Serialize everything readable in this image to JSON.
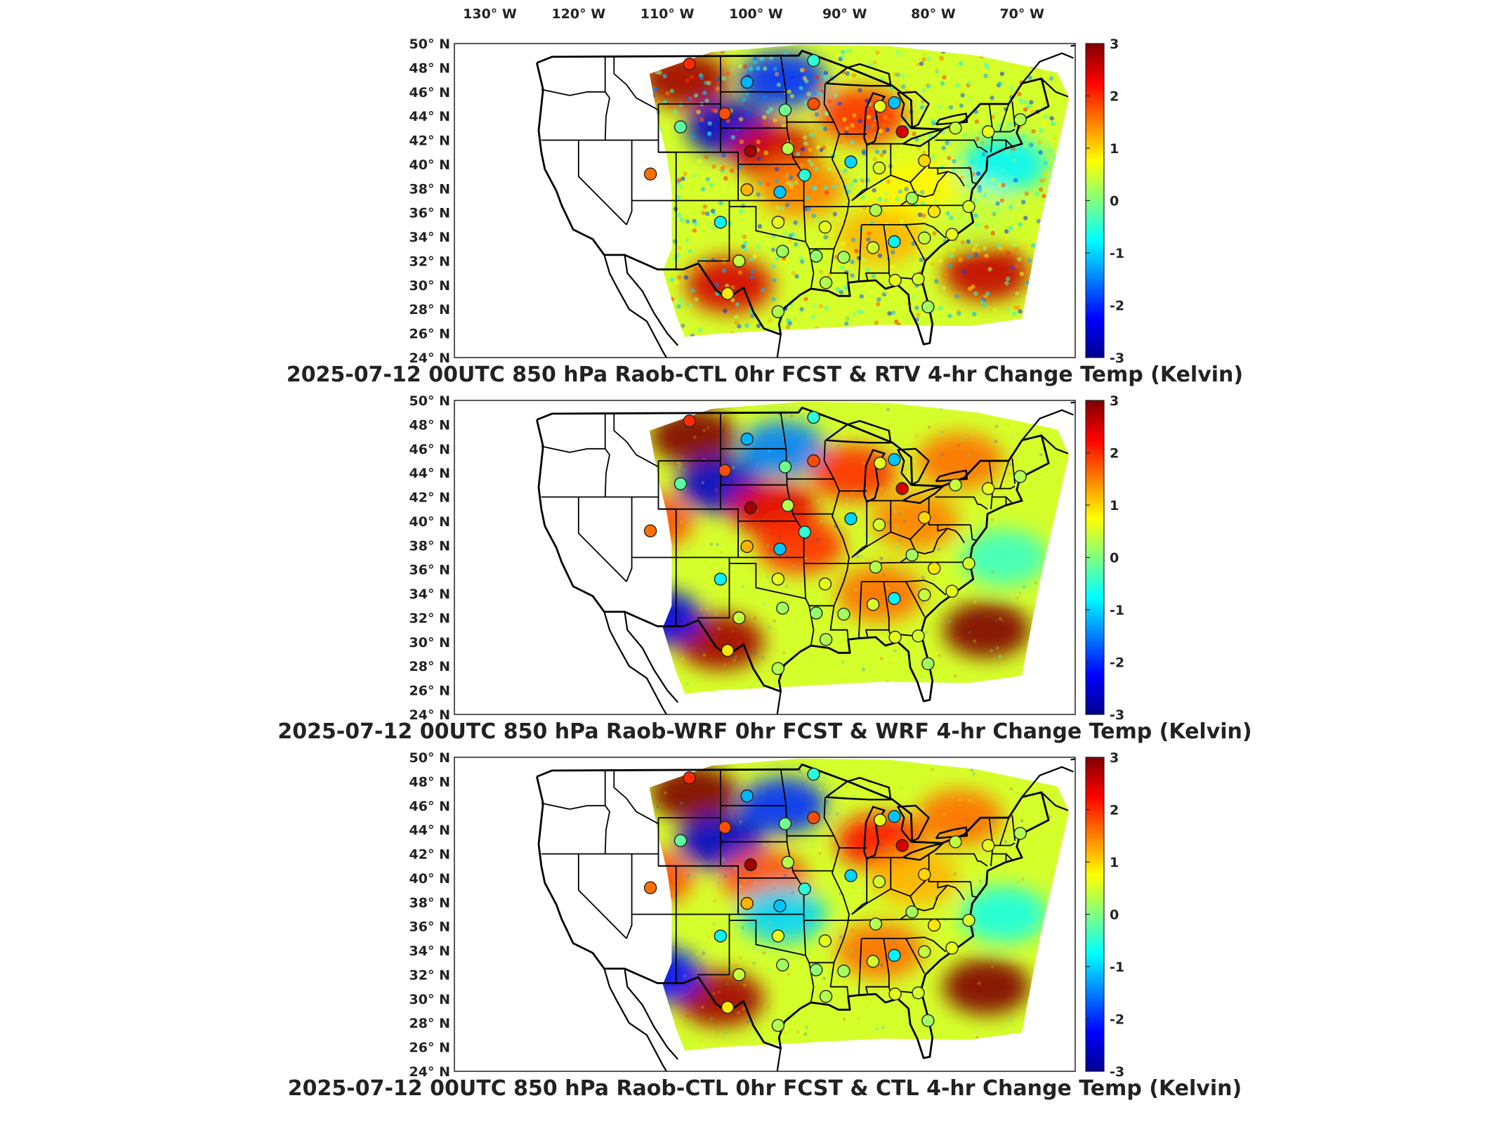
{
  "figure": {
    "lon_ticks": [
      "130° W",
      "120° W",
      "110° W",
      "100° W",
      "90° W",
      "80° W",
      "70° W"
    ],
    "lat_ticks": [
      "50° N",
      "48° N",
      "46° N",
      "44° N",
      "42° N",
      "40° N",
      "38° N",
      "36° N",
      "34° N",
      "32° N",
      "30° N",
      "28° N",
      "26° N",
      "24° N"
    ],
    "colorbar_ticks": [
      "3",
      "2",
      "1",
      "0",
      "-1",
      "-2",
      "-3"
    ],
    "colormap": [
      "#00008f",
      "#0000ff",
      "#0080ff",
      "#00ffff",
      "#80ff80",
      "#ffff00",
      "#ff8000",
      "#ff0000",
      "#800000"
    ]
  },
  "chart_data": [
    {
      "type": "heatmap",
      "title": "2025-07-12 00UTC 850 hPa Raob-CTL 0hr FCST & RTV 4-hr Change Temp (Kelvin)",
      "xlim": [
        -134,
        -64
      ],
      "ylim": [
        24,
        50
      ],
      "clim": [
        -3,
        3
      ],
      "field_pattern": "speckled",
      "regions": [
        {
          "lon": -108,
          "lat": 47,
          "value": 2.8
        },
        {
          "lon": -103,
          "lat": 43,
          "value": -2.6
        },
        {
          "lon": -97,
          "lat": 47,
          "value": -2.0
        },
        {
          "lon": -98,
          "lat": 41,
          "value": 2.5
        },
        {
          "lon": -88,
          "lat": 44,
          "value": 2.0
        },
        {
          "lon": -95,
          "lat": 38,
          "value": 1.5
        },
        {
          "lon": -103,
          "lat": 30,
          "value": 2.5
        },
        {
          "lon": -86,
          "lat": 34,
          "value": 1.2
        },
        {
          "lon": -72,
          "lat": 40,
          "value": -0.8
        },
        {
          "lon": -74,
          "lat": 31,
          "value": 2.6
        },
        {
          "lon": -76,
          "lat": 36,
          "value": 0.4
        },
        {
          "lon": -82,
          "lat": 38,
          "value": 0.8
        }
      ],
      "stations": [
        {
          "lon": -107.5,
          "lat": 48.3,
          "value": 2.0
        },
        {
          "lon": -101.0,
          "lat": 46.8,
          "value": -1.2
        },
        {
          "lon": -93.5,
          "lat": 48.6,
          "value": -0.5
        },
        {
          "lon": -108.5,
          "lat": 43.1,
          "value": -0.2
        },
        {
          "lon": -103.5,
          "lat": 44.2,
          "value": 1.8
        },
        {
          "lon": -96.7,
          "lat": 44.5,
          "value": -0.1
        },
        {
          "lon": -93.5,
          "lat": 45.0,
          "value": 1.8
        },
        {
          "lon": -86.0,
          "lat": 44.8,
          "value": 0.6
        },
        {
          "lon": -84.4,
          "lat": 45.1,
          "value": -1.1
        },
        {
          "lon": -83.5,
          "lat": 42.7,
          "value": 2.5
        },
        {
          "lon": -77.5,
          "lat": 43.0,
          "value": 0.4
        },
        {
          "lon": -73.8,
          "lat": 42.7,
          "value": 0.6
        },
        {
          "lon": -70.2,
          "lat": 43.7,
          "value": 0.3
        },
        {
          "lon": -100.6,
          "lat": 41.1,
          "value": 2.8
        },
        {
          "lon": -96.4,
          "lat": 41.3,
          "value": 0.3
        },
        {
          "lon": -89.3,
          "lat": 40.2,
          "value": -1.0
        },
        {
          "lon": -86.1,
          "lat": 39.7,
          "value": 0.5
        },
        {
          "lon": -81.0,
          "lat": 40.3,
          "value": 1.0
        },
        {
          "lon": -111.9,
          "lat": 39.2,
          "value": 1.6
        },
        {
          "lon": -101.0,
          "lat": 37.9,
          "value": 1.2
        },
        {
          "lon": -97.3,
          "lat": 37.7,
          "value": -1.1
        },
        {
          "lon": -94.5,
          "lat": 39.1,
          "value": -0.5
        },
        {
          "lon": -86.5,
          "lat": 36.2,
          "value": 0.3
        },
        {
          "lon": -82.4,
          "lat": 37.2,
          "value": 0.2
        },
        {
          "lon": -79.9,
          "lat": 36.1,
          "value": 0.9
        },
        {
          "lon": -76.0,
          "lat": 36.5,
          "value": 0.5
        },
        {
          "lon": -104.0,
          "lat": 35.2,
          "value": -0.8
        },
        {
          "lon": -97.5,
          "lat": 35.2,
          "value": 0.6
        },
        {
          "lon": -92.2,
          "lat": 34.8,
          "value": 0.6
        },
        {
          "lon": -90.1,
          "lat": 32.3,
          "value": 0.2
        },
        {
          "lon": -86.8,
          "lat": 33.1,
          "value": 0.5
        },
        {
          "lon": -84.4,
          "lat": 33.6,
          "value": -0.8
        },
        {
          "lon": -81.0,
          "lat": 33.9,
          "value": 0.4
        },
        {
          "lon": -77.9,
          "lat": 34.2,
          "value": 0.6
        },
        {
          "lon": -101.9,
          "lat": 32.0,
          "value": 0.4
        },
        {
          "lon": -97.0,
          "lat": 32.8,
          "value": 0.2
        },
        {
          "lon": -93.2,
          "lat": 32.4,
          "value": 0.1
        },
        {
          "lon": -84.3,
          "lat": 30.4,
          "value": 0.6
        },
        {
          "lon": -81.7,
          "lat": 30.5,
          "value": 0.5
        },
        {
          "lon": -97.5,
          "lat": 27.8,
          "value": 0.3
        },
        {
          "lon": -80.6,
          "lat": 28.2,
          "value": 0.2
        },
        {
          "lon": -92.1,
          "lat": 30.2,
          "value": 0.3
        },
        {
          "lon": -103.2,
          "lat": 29.3,
          "value": 0.9
        }
      ]
    },
    {
      "type": "heatmap",
      "title": "2025-07-12 00UTC 850 hPa Raob-WRF 0hr FCST & WRF 4-hr Change Temp (Kelvin)",
      "xlim": [
        -134,
        -64
      ],
      "ylim": [
        24,
        50
      ],
      "clim": [
        -3,
        3
      ],
      "field_pattern": "smooth",
      "regions": [
        {
          "lon": -107,
          "lat": 47,
          "value": 3.0
        },
        {
          "lon": -104,
          "lat": 43,
          "value": -2.6
        },
        {
          "lon": -97,
          "lat": 46,
          "value": -1.5
        },
        {
          "lon": -98,
          "lat": 41,
          "value": 2.4
        },
        {
          "lon": -89,
          "lat": 44,
          "value": 2.0
        },
        {
          "lon": -95,
          "lat": 38,
          "value": 2.0
        },
        {
          "lon": -104,
          "lat": 30,
          "value": 2.8
        },
        {
          "lon": -86,
          "lat": 34,
          "value": 1.6
        },
        {
          "lon": -82,
          "lat": 40,
          "value": 1.5
        },
        {
          "lon": -72,
          "lat": 37,
          "value": -0.4
        },
        {
          "lon": -74,
          "lat": 31,
          "value": 3.0
        },
        {
          "lon": -77,
          "lat": 45,
          "value": 1.6
        },
        {
          "lon": -112,
          "lat": 40,
          "value": 1.8
        },
        {
          "lon": -111,
          "lat": 32,
          "value": -2.4
        }
      ],
      "stations": [
        {
          "lon": -107.5,
          "lat": 48.3,
          "value": 2.0
        },
        {
          "lon": -101.0,
          "lat": 46.8,
          "value": -1.2
        },
        {
          "lon": -93.5,
          "lat": 48.6,
          "value": -0.5
        },
        {
          "lon": -108.5,
          "lat": 43.1,
          "value": -0.2
        },
        {
          "lon": -103.5,
          "lat": 44.2,
          "value": 1.8
        },
        {
          "lon": -96.7,
          "lat": 44.5,
          "value": -0.1
        },
        {
          "lon": -93.5,
          "lat": 45.0,
          "value": 1.8
        },
        {
          "lon": -86.0,
          "lat": 44.8,
          "value": 0.6
        },
        {
          "lon": -84.4,
          "lat": 45.1,
          "value": -1.1
        },
        {
          "lon": -83.5,
          "lat": 42.7,
          "value": 2.5
        },
        {
          "lon": -77.5,
          "lat": 43.0,
          "value": 0.4
        },
        {
          "lon": -73.8,
          "lat": 42.7,
          "value": 0.6
        },
        {
          "lon": -70.2,
          "lat": 43.7,
          "value": 0.3
        },
        {
          "lon": -100.6,
          "lat": 41.1,
          "value": 2.8
        },
        {
          "lon": -96.4,
          "lat": 41.3,
          "value": 0.3
        },
        {
          "lon": -89.3,
          "lat": 40.2,
          "value": -1.0
        },
        {
          "lon": -86.1,
          "lat": 39.7,
          "value": 0.5
        },
        {
          "lon": -81.0,
          "lat": 40.3,
          "value": 1.0
        },
        {
          "lon": -111.9,
          "lat": 39.2,
          "value": 1.6
        },
        {
          "lon": -101.0,
          "lat": 37.9,
          "value": 1.2
        },
        {
          "lon": -97.3,
          "lat": 37.7,
          "value": -1.1
        },
        {
          "lon": -94.5,
          "lat": 39.1,
          "value": -0.5
        },
        {
          "lon": -86.5,
          "lat": 36.2,
          "value": 0.3
        },
        {
          "lon": -82.4,
          "lat": 37.2,
          "value": 0.2
        },
        {
          "lon": -79.9,
          "lat": 36.1,
          "value": 0.9
        },
        {
          "lon": -76.0,
          "lat": 36.5,
          "value": 0.5
        },
        {
          "lon": -104.0,
          "lat": 35.2,
          "value": -0.8
        },
        {
          "lon": -97.5,
          "lat": 35.2,
          "value": 0.6
        },
        {
          "lon": -92.2,
          "lat": 34.8,
          "value": 0.6
        },
        {
          "lon": -90.1,
          "lat": 32.3,
          "value": 0.2
        },
        {
          "lon": -86.8,
          "lat": 33.1,
          "value": 0.5
        },
        {
          "lon": -84.4,
          "lat": 33.6,
          "value": -0.8
        },
        {
          "lon": -81.0,
          "lat": 33.9,
          "value": 0.4
        },
        {
          "lon": -77.9,
          "lat": 34.2,
          "value": 0.6
        },
        {
          "lon": -101.9,
          "lat": 32.0,
          "value": 0.4
        },
        {
          "lon": -97.0,
          "lat": 32.8,
          "value": 0.2
        },
        {
          "lon": -93.2,
          "lat": 32.4,
          "value": 0.1
        },
        {
          "lon": -84.3,
          "lat": 30.4,
          "value": 0.6
        },
        {
          "lon": -81.7,
          "lat": 30.5,
          "value": 0.5
        },
        {
          "lon": -97.5,
          "lat": 27.8,
          "value": 0.3
        },
        {
          "lon": -80.6,
          "lat": 28.2,
          "value": 0.2
        },
        {
          "lon": -92.1,
          "lat": 30.2,
          "value": 0.3
        },
        {
          "lon": -103.2,
          "lat": 29.3,
          "value": 0.9
        }
      ]
    },
    {
      "type": "heatmap",
      "title": "2025-07-12 00UTC 850 hPa Raob-CTL 0hr FCST & CTL 4-hr Change Temp (Kelvin)",
      "xlim": [
        -134,
        -64
      ],
      "ylim": [
        24,
        50
      ],
      "clim": [
        -3,
        3
      ],
      "field_pattern": "smooth",
      "regions": [
        {
          "lon": -107,
          "lat": 47,
          "value": 3.0
        },
        {
          "lon": -104,
          "lat": 43,
          "value": -2.6
        },
        {
          "lon": -97,
          "lat": 46,
          "value": -2.0
        },
        {
          "lon": -99,
          "lat": 40,
          "value": 1.8
        },
        {
          "lon": -86,
          "lat": 43,
          "value": 2.2
        },
        {
          "lon": -97,
          "lat": 37,
          "value": -1.0
        },
        {
          "lon": -104,
          "lat": 30,
          "value": 2.8
        },
        {
          "lon": -86,
          "lat": 34,
          "value": 1.6
        },
        {
          "lon": -82,
          "lat": 40,
          "value": 1.2
        },
        {
          "lon": -72,
          "lat": 37,
          "value": -0.6
        },
        {
          "lon": -74,
          "lat": 31,
          "value": 3.0
        },
        {
          "lon": -77,
          "lat": 45,
          "value": 1.6
        },
        {
          "lon": -112,
          "lat": 40,
          "value": 1.8
        },
        {
          "lon": -111,
          "lat": 32,
          "value": -2.2
        }
      ],
      "stations": [
        {
          "lon": -107.5,
          "lat": 48.3,
          "value": 2.0
        },
        {
          "lon": -101.0,
          "lat": 46.8,
          "value": -1.2
        },
        {
          "lon": -93.5,
          "lat": 48.6,
          "value": -0.5
        },
        {
          "lon": -108.5,
          "lat": 43.1,
          "value": -0.2
        },
        {
          "lon": -103.5,
          "lat": 44.2,
          "value": 1.8
        },
        {
          "lon": -96.7,
          "lat": 44.5,
          "value": -0.1
        },
        {
          "lon": -93.5,
          "lat": 45.0,
          "value": 1.8
        },
        {
          "lon": -86.0,
          "lat": 44.8,
          "value": 0.6
        },
        {
          "lon": -84.4,
          "lat": 45.1,
          "value": -1.1
        },
        {
          "lon": -83.5,
          "lat": 42.7,
          "value": 2.5
        },
        {
          "lon": -77.5,
          "lat": 43.0,
          "value": 0.4
        },
        {
          "lon": -73.8,
          "lat": 42.7,
          "value": 0.6
        },
        {
          "lon": -70.2,
          "lat": 43.7,
          "value": 0.3
        },
        {
          "lon": -100.6,
          "lat": 41.1,
          "value": 2.8
        },
        {
          "lon": -96.4,
          "lat": 41.3,
          "value": 0.3
        },
        {
          "lon": -89.3,
          "lat": 40.2,
          "value": -1.0
        },
        {
          "lon": -86.1,
          "lat": 39.7,
          "value": 0.5
        },
        {
          "lon": -81.0,
          "lat": 40.3,
          "value": 1.0
        },
        {
          "lon": -111.9,
          "lat": 39.2,
          "value": 1.6
        },
        {
          "lon": -101.0,
          "lat": 37.9,
          "value": 1.2
        },
        {
          "lon": -97.3,
          "lat": 37.7,
          "value": -1.1
        },
        {
          "lon": -94.5,
          "lat": 39.1,
          "value": -0.5
        },
        {
          "lon": -86.5,
          "lat": 36.2,
          "value": 0.3
        },
        {
          "lon": -82.4,
          "lat": 37.2,
          "value": 0.2
        },
        {
          "lon": -79.9,
          "lat": 36.1,
          "value": 0.9
        },
        {
          "lon": -76.0,
          "lat": 36.5,
          "value": 0.5
        },
        {
          "lon": -104.0,
          "lat": 35.2,
          "value": -0.8
        },
        {
          "lon": -97.5,
          "lat": 35.2,
          "value": 0.6
        },
        {
          "lon": -92.2,
          "lat": 34.8,
          "value": 0.6
        },
        {
          "lon": -90.1,
          "lat": 32.3,
          "value": 0.2
        },
        {
          "lon": -86.8,
          "lat": 33.1,
          "value": 0.5
        },
        {
          "lon": -84.4,
          "lat": 33.6,
          "value": -0.8
        },
        {
          "lon": -81.0,
          "lat": 33.9,
          "value": 0.4
        },
        {
          "lon": -77.9,
          "lat": 34.2,
          "value": 0.6
        },
        {
          "lon": -101.9,
          "lat": 32.0,
          "value": 0.4
        },
        {
          "lon": -97.0,
          "lat": 32.8,
          "value": 0.2
        },
        {
          "lon": -93.2,
          "lat": 32.4,
          "value": 0.1
        },
        {
          "lon": -84.3,
          "lat": 30.4,
          "value": 0.6
        },
        {
          "lon": -81.7,
          "lat": 30.5,
          "value": 0.5
        },
        {
          "lon": -97.5,
          "lat": 27.8,
          "value": 0.3
        },
        {
          "lon": -80.6,
          "lat": 28.2,
          "value": 0.2
        },
        {
          "lon": -92.1,
          "lat": 30.2,
          "value": 0.3
        },
        {
          "lon": -103.2,
          "lat": 29.3,
          "value": 0.9
        }
      ]
    }
  ]
}
